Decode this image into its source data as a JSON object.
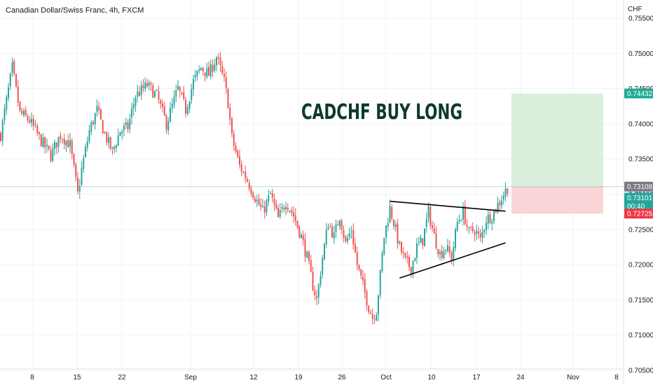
{
  "chart_data": {
    "type": "candlestick",
    "title": "Canadian Dollar/Swiss Franc, 4h, FXCM",
    "currency_label": "CHF",
    "annotation": "CADCHF BUY LONG",
    "ylim": [
      0.7045,
      0.756
    ],
    "y_ticks": [
      "0.75500",
      "0.75000",
      "0.74500",
      "0.74000",
      "0.73500",
      "0.73000",
      "0.72500",
      "0.72000",
      "0.71500",
      "0.71000",
      "0.70500"
    ],
    "x_ticks": [
      "8",
      "15",
      "22",
      "Sep",
      "12",
      "19",
      "26",
      "Oct",
      "10",
      "17",
      "24",
      "Nov",
      "8"
    ],
    "last_price": {
      "value": "0.73101",
      "countdown": "00:40",
      "color": "#26a69a"
    },
    "position": {
      "entry": "0.73108",
      "target": "0.74432",
      "stop": "0.72725",
      "entry_color": "#787b86",
      "target_color": "#22ab94",
      "stop_color": "#f23645",
      "profit_zone_color": "#d5ecd6",
      "loss_zone_color": "#f9cfd3"
    },
    "trendlines": [
      {
        "from": {
          "i": 202,
          "y": 0.729
        },
        "to": {
          "i": 262,
          "y": 0.7276
        }
      },
      {
        "from": {
          "i": 207,
          "y": 0.7181
        },
        "to": {
          "i": 262,
          "y": 0.7231
        }
      }
    ],
    "up_color": "#26a69a",
    "down_color": "#ef5350",
    "closes_anchor_points": [
      [
        0,
        0.7385
      ],
      [
        6,
        0.748
      ],
      [
        10,
        0.7415
      ],
      [
        15,
        0.7405
      ],
      [
        20,
        0.738
      ],
      [
        26,
        0.7355
      ],
      [
        31,
        0.7385
      ],
      [
        36,
        0.737
      ],
      [
        40,
        0.73
      ],
      [
        42,
        0.7335
      ],
      [
        46,
        0.739
      ],
      [
        50,
        0.742
      ],
      [
        54,
        0.7385
      ],
      [
        58,
        0.736
      ],
      [
        62,
        0.739
      ],
      [
        66,
        0.7395
      ],
      [
        70,
        0.744
      ],
      [
        76,
        0.7455
      ],
      [
        81,
        0.744
      ],
      [
        86,
        0.74
      ],
      [
        92,
        0.745
      ],
      [
        96,
        0.742
      ],
      [
        100,
        0.746
      ],
      [
        104,
        0.748
      ],
      [
        108,
        0.747
      ],
      [
        112,
        0.7495
      ],
      [
        116,
        0.746
      ],
      [
        118,
        0.743
      ],
      [
        120,
        0.738
      ],
      [
        124,
        0.734
      ],
      [
        128,
        0.732
      ],
      [
        133,
        0.729
      ],
      [
        136,
        0.7275
      ],
      [
        140,
        0.73
      ],
      [
        144,
        0.7265
      ],
      [
        148,
        0.729
      ],
      [
        152,
        0.727
      ],
      [
        156,
        0.724
      ],
      [
        159,
        0.721
      ],
      [
        162,
        0.717
      ],
      [
        164,
        0.715
      ],
      [
        167,
        0.721
      ],
      [
        170,
        0.726
      ],
      [
        173,
        0.724
      ],
      [
        176,
        0.727
      ],
      [
        179,
        0.723
      ],
      [
        182,
        0.725
      ],
      [
        185,
        0.72
      ],
      [
        188,
        0.717
      ],
      [
        191,
        0.714
      ],
      [
        193,
        0.7125
      ],
      [
        195,
        0.7135
      ],
      [
        197,
        0.7185
      ],
      [
        199,
        0.724
      ],
      [
        202,
        0.728
      ],
      [
        204,
        0.726
      ],
      [
        207,
        0.7225
      ],
      [
        210,
        0.7205
      ],
      [
        213,
        0.7195
      ],
      [
        216,
        0.7225
      ],
      [
        219,
        0.7235
      ],
      [
        222,
        0.7275
      ],
      [
        225,
        0.724
      ],
      [
        228,
        0.7215
      ],
      [
        231,
        0.7225
      ],
      [
        234,
        0.721
      ],
      [
        237,
        0.726
      ],
      [
        240,
        0.7275
      ],
      [
        243,
        0.7245
      ],
      [
        246,
        0.725
      ],
      [
        249,
        0.7235
      ],
      [
        252,
        0.7265
      ],
      [
        255,
        0.727
      ],
      [
        258,
        0.7285
      ],
      [
        261,
        0.73
      ],
      [
        263,
        0.731
      ]
    ]
  }
}
